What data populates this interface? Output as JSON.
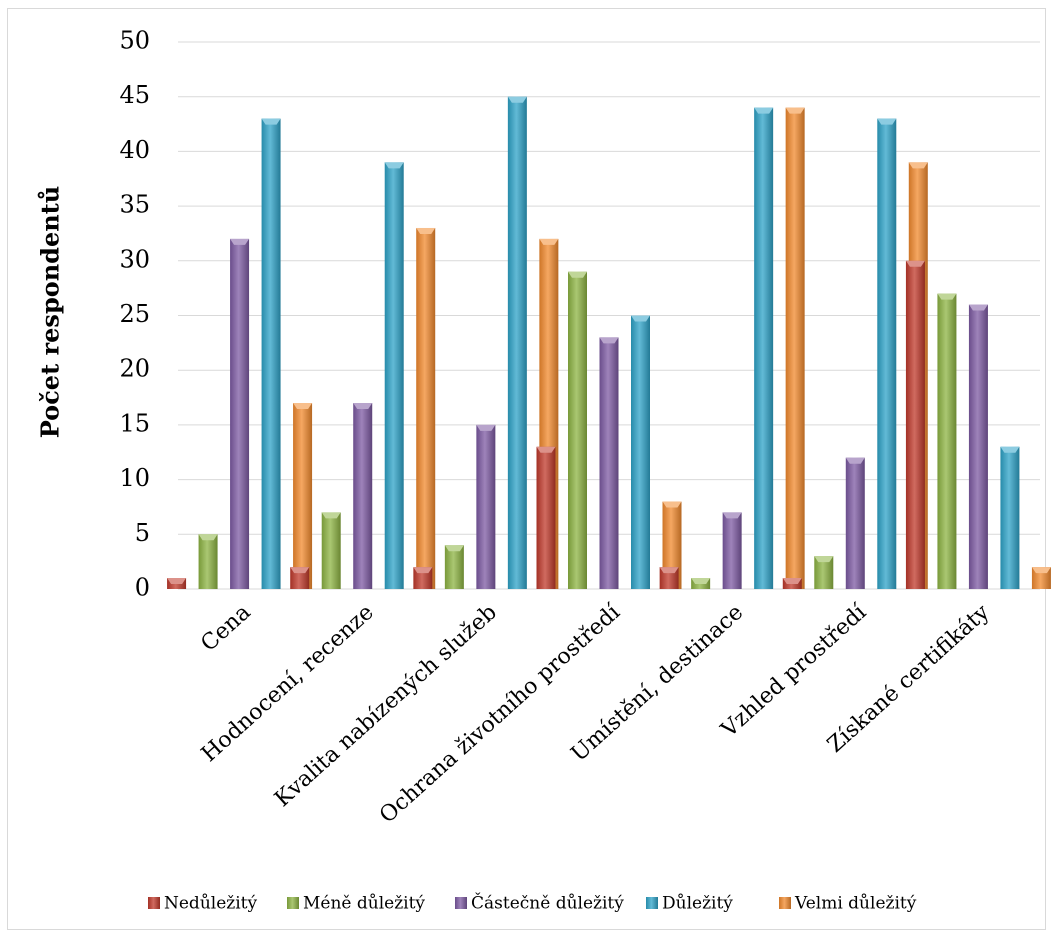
{
  "chart_data": {
    "type": "bar",
    "title": "",
    "xlabel": "",
    "ylabel": "Počet respondentů",
    "ylim": [
      0,
      50
    ],
    "yticks": [
      0,
      5,
      10,
      15,
      20,
      25,
      30,
      35,
      40,
      45,
      50
    ],
    "grid": true,
    "legend_position": "bottom",
    "categories": [
      "Cena",
      "Hodnocení, recenze",
      "Kvalita nabízených služeb",
      "Ochrana životního prostředí",
      "Umístění, destinace",
      "Vzhled prostředí",
      "Získané certifikáty"
    ],
    "series": [
      {
        "name": "Nedůležitý",
        "color": "#c0392b",
        "values": [
          1,
          2,
          2,
          13,
          2,
          1,
          30
        ]
      },
      {
        "name": "Méně důležitý",
        "color": "#8db443",
        "values": [
          5,
          7,
          4,
          29,
          1,
          3,
          27
        ]
      },
      {
        "name": "Částečně důležitý",
        "color": "#7d5aa3",
        "values": [
          32,
          17,
          15,
          23,
          7,
          12,
          26
        ]
      },
      {
        "name": "Důležitý",
        "color": "#2ea3c8",
        "values": [
          43,
          39,
          45,
          25,
          44,
          43,
          13
        ]
      },
      {
        "name": "Velmi důležitý",
        "color": "#f28a2e",
        "values": [
          17,
          33,
          32,
          8,
          44,
          39,
          2
        ]
      }
    ]
  }
}
